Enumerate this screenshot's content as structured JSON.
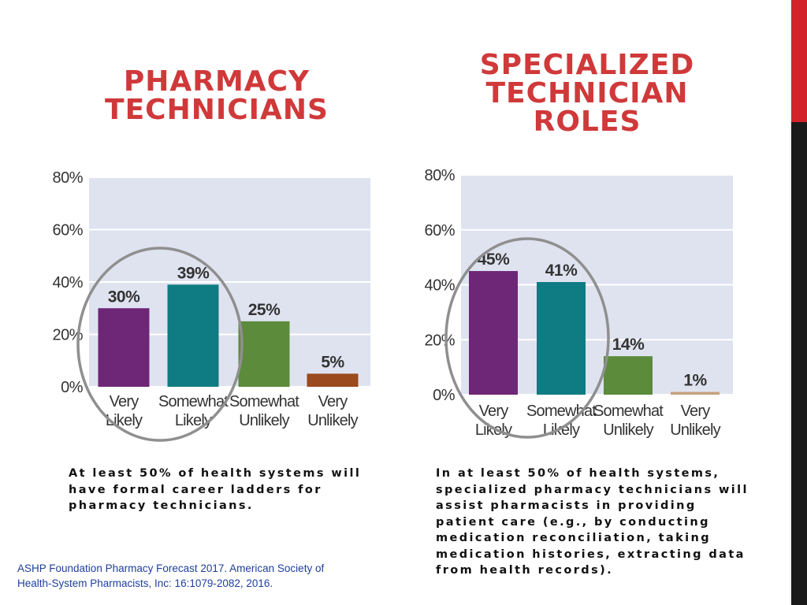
{
  "slide": {
    "accent_colors": {
      "red": "#d3222a",
      "black": "#1a1a1a",
      "title": "#d0393a"
    }
  },
  "left": {
    "title_lines": [
      "PHARMACY",
      "TECHNICIANS"
    ],
    "caption_lines": [
      "At least 50% of health systems will",
      "have formal career ladders for",
      "pharmacy technicians."
    ]
  },
  "right": {
    "title_lines": [
      "SPECIALIZED",
      "TECHNICIAN",
      "ROLES"
    ],
    "caption_lines": [
      "In at least 50% of health systems,",
      "specialized pharmacy technicians will",
      "assist pharmacists in providing",
      "patient care (e.g., by conducting",
      "medication reconciliation, taking",
      "medication histories, extracting data",
      "from health records)."
    ]
  },
  "citation_lines": [
    "ASHP Foundation Pharmacy Forecast 2017. American Society of",
    "Health-System Pharmacists, Inc: 16:1079-2082, 2016."
  ],
  "chart_data": [
    {
      "type": "bar",
      "categories": [
        [
          "Very",
          "Likely"
        ],
        [
          "Somewhat",
          "Likely"
        ],
        [
          "Somewhat",
          "Unlikely"
        ],
        [
          "Very",
          "Unlikely"
        ]
      ],
      "values": [
        30,
        39,
        25,
        5
      ],
      "value_labels": [
        "30%",
        "39%",
        "25%",
        "5%"
      ],
      "bar_colors": [
        "#6e2677",
        "#0f7b82",
        "#5b8b3b",
        "#9a4a1c"
      ],
      "yticks": [
        "0%",
        "20%",
        "40%",
        "60%",
        "80%"
      ],
      "ylim": [
        0,
        80
      ],
      "grid": true,
      "plot_background": "#dfe3f0",
      "highlight": "circle around Very Likely and Somewhat Likely"
    },
    {
      "type": "bar",
      "categories": [
        [
          "Very",
          "Likely"
        ],
        [
          "Somewhat",
          "Likely"
        ],
        [
          "Somewhat",
          "Unlikely"
        ],
        [
          "Very",
          "Unlikely"
        ]
      ],
      "values": [
        45,
        41,
        14,
        1
      ],
      "value_labels": [
        "45%",
        "41%",
        "14%",
        "1%"
      ],
      "bar_colors": [
        "#6e2677",
        "#0f7b82",
        "#5b8b3b",
        "#c8a07c"
      ],
      "yticks": [
        "0%",
        "20%",
        "40%",
        "60%",
        "80%"
      ],
      "ylim": [
        0,
        80
      ],
      "grid": true,
      "plot_background": "#dfe3f0",
      "highlight": "circle around Very Likely and Somewhat Likely"
    }
  ]
}
